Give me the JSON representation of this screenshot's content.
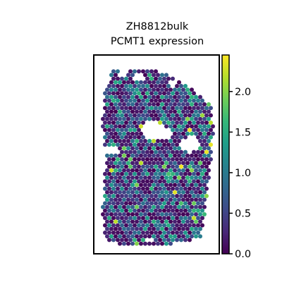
{
  "title_line1": "ZH8812bulk",
  "title_line2": "PCMT1 expression",
  "chart_data": {
    "type": "scatter",
    "subtype": "spatial-spot-map",
    "title": "ZH8812bulk\nPCMT1 expression",
    "xlabel": "",
    "ylabel": "",
    "colormap": "viridis",
    "color_range": [
      0.0,
      2.45
    ],
    "colorbar_ticks": [
      0.0,
      0.5,
      1.0,
      1.5,
      2.0
    ],
    "colorbar_tick_labels": [
      "0.0",
      "0.5",
      "1.0",
      "1.5",
      "2.0"
    ],
    "grid": false,
    "legend": "colorbar-right",
    "value_distribution_note_values": {
      "low": 0.0,
      "median": 0.7,
      "high": 2.45
    }
  },
  "colors": {
    "viridis_stops": [
      "#440154",
      "#482878",
      "#3e4989",
      "#31688e",
      "#26828e",
      "#1f9e89",
      "#35b779",
      "#6ece58",
      "#b5de2b",
      "#fde725"
    ]
  }
}
